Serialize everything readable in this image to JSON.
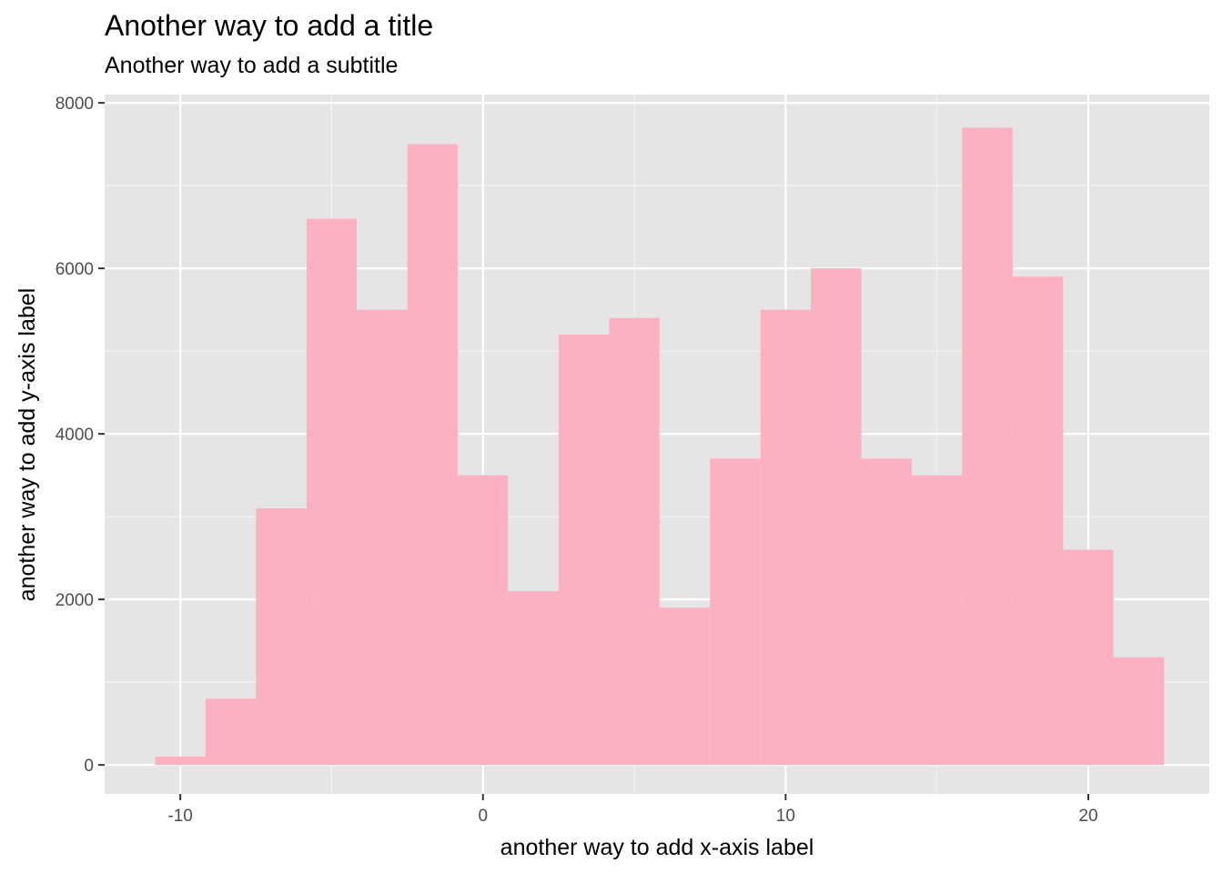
{
  "chart_data": {
    "type": "bar",
    "subtype": "histogram",
    "title": "Another way to add a title",
    "subtitle": "Another way to add a subtitle",
    "xlabel": "another way to add x-axis label",
    "ylabel": "another way to add y-axis label",
    "xlim": [
      -12.5,
      24
    ],
    "ylim": [
      -350,
      8100
    ],
    "x_ticks": [
      -10,
      0,
      10,
      20
    ],
    "x_tick_labels": [
      "-10",
      "0",
      "10",
      "20"
    ],
    "y_ticks": [
      0,
      2000,
      4000,
      6000,
      8000
    ],
    "y_tick_labels": [
      "0",
      "2000",
      "4000",
      "6000",
      "8000"
    ],
    "bin_width": 1.667,
    "bins": [
      {
        "x_start": -10.83,
        "x_end": -9.17,
        "count": 100
      },
      {
        "x_start": -9.17,
        "x_end": -7.5,
        "count": 800
      },
      {
        "x_start": -7.5,
        "x_end": -5.83,
        "count": 3100
      },
      {
        "x_start": -5.83,
        "x_end": -4.17,
        "count": 6600
      },
      {
        "x_start": -4.17,
        "x_end": -2.5,
        "count": 5500
      },
      {
        "x_start": -2.5,
        "x_end": -0.83,
        "count": 7500
      },
      {
        "x_start": -0.83,
        "x_end": 0.83,
        "count": 3500
      },
      {
        "x_start": 0.83,
        "x_end": 2.5,
        "count": 2100
      },
      {
        "x_start": 2.5,
        "x_end": 4.17,
        "count": 5200
      },
      {
        "x_start": 4.17,
        "x_end": 5.83,
        "count": 5400
      },
      {
        "x_start": 5.83,
        "x_end": 7.5,
        "count": 1900
      },
      {
        "x_start": 7.5,
        "x_end": 9.17,
        "count": 3700
      },
      {
        "x_start": 9.17,
        "x_end": 10.83,
        "count": 5500
      },
      {
        "x_start": 10.83,
        "x_end": 12.5,
        "count": 6000
      },
      {
        "x_start": 12.5,
        "x_end": 14.17,
        "count": 3700
      },
      {
        "x_start": 14.17,
        "x_end": 15.83,
        "count": 3500
      },
      {
        "x_start": 15.83,
        "x_end": 17.5,
        "count": 7700
      },
      {
        "x_start": 17.5,
        "x_end": 19.17,
        "count": 5900
      },
      {
        "x_start": 19.17,
        "x_end": 20.83,
        "count": 2600
      },
      {
        "x_start": 20.83,
        "x_end": 22.5,
        "count": 1300
      }
    ],
    "fill_color": "#fbb1c2",
    "panel_background": "#e5e5e5",
    "grid": true,
    "grid_color": "#ffffff",
    "legend": "none"
  }
}
